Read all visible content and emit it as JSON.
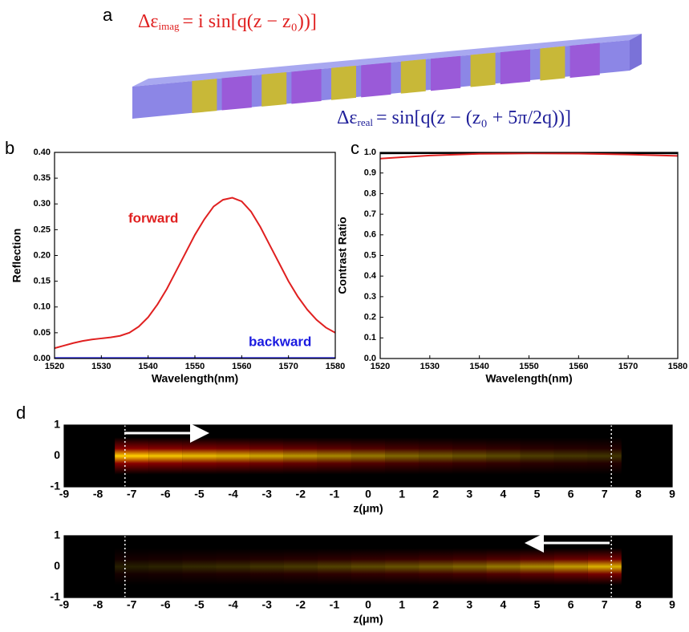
{
  "panel_a": {
    "label": "a",
    "equation_imag": {
      "base": "Δε",
      "sub": "imag",
      "rhs": "= i sin[q(z − z₀))]"
    },
    "equation_real": {
      "base": "Δε",
      "sub": "real",
      "rhs": "= sin[q(z − (z₀ + 5π/2q))]"
    }
  },
  "chart_data": [
    {
      "type": "line",
      "panel": "b",
      "xlabel": "Wavelength(nm)",
      "ylabel": "Reflection",
      "x": [
        1520,
        1522,
        1524,
        1526,
        1528,
        1530,
        1532,
        1534,
        1536,
        1538,
        1540,
        1542,
        1544,
        1546,
        1548,
        1550,
        1552,
        1554,
        1556,
        1558,
        1560,
        1562,
        1564,
        1566,
        1568,
        1570,
        1572,
        1574,
        1576,
        1578,
        1580
      ],
      "series": [
        {
          "name": "forward",
          "color": "#e02020",
          "values": [
            0.02,
            0.025,
            0.03,
            0.034,
            0.037,
            0.039,
            0.041,
            0.044,
            0.05,
            0.062,
            0.08,
            0.105,
            0.135,
            0.17,
            0.205,
            0.24,
            0.27,
            0.295,
            0.308,
            0.312,
            0.305,
            0.285,
            0.255,
            0.22,
            0.185,
            0.15,
            0.12,
            0.095,
            0.075,
            0.06,
            0.05
          ]
        },
        {
          "name": "backward",
          "color": "#1a1ae0",
          "values": [
            0.001,
            0.001,
            0.001,
            0.001,
            0.001,
            0.001,
            0.001,
            0.001,
            0.001,
            0.001,
            0.001,
            0.001,
            0.001,
            0.001,
            0.001,
            0.001,
            0.001,
            0.001,
            0.001,
            0.001,
            0.001,
            0.001,
            0.001,
            0.001,
            0.001,
            0.001,
            0.001,
            0.001,
            0.001,
            0.001,
            0.001
          ]
        }
      ],
      "xlim": [
        1520,
        1580
      ],
      "xticks": [
        1520,
        1530,
        1540,
        1550,
        1560,
        1570,
        1580
      ],
      "ylim": [
        0,
        0.4
      ],
      "yticks": [
        {
          "value": 0,
          "label": "0.00"
        },
        {
          "value": 0.05,
          "label": "0.05"
        },
        {
          "value": 0.1,
          "label": "0.10"
        },
        {
          "value": 0.15,
          "label": "0.15"
        },
        {
          "value": 0.2,
          "label": "0.20"
        },
        {
          "value": 0.25,
          "label": "0.25"
        },
        {
          "value": 0.3,
          "label": "0.30"
        },
        {
          "value": 0.35,
          "label": "0.35"
        },
        {
          "value": 0.4,
          "label": "0.40"
        }
      ]
    },
    {
      "type": "line",
      "panel": "c",
      "xlabel": "Wavelength(nm)",
      "ylabel": "Contrast Ratio",
      "x": [
        1520,
        1530,
        1540,
        1550,
        1560,
        1570,
        1580
      ],
      "series": [
        {
          "color": "#000000",
          "values": [
            0.995,
            0.996,
            0.997,
            0.997,
            0.997,
            0.996,
            0.995
          ]
        },
        {
          "color": "#e02020",
          "values": [
            0.97,
            0.985,
            0.993,
            0.995,
            0.994,
            0.99,
            0.983
          ]
        }
      ],
      "xlim": [
        1520,
        1580
      ],
      "xticks": [
        1520,
        1530,
        1540,
        1550,
        1560,
        1570,
        1580
      ],
      "ylim": [
        0,
        1
      ],
      "yticks": [
        {
          "value": 0,
          "label": "0.0"
        },
        {
          "value": 0.1,
          "label": "0.1"
        },
        {
          "value": 0.2,
          "label": "0.2"
        },
        {
          "value": 0.3,
          "label": "0.3"
        },
        {
          "value": 0.4,
          "label": "0.4"
        },
        {
          "value": 0.5,
          "label": "0.5"
        },
        {
          "value": 0.6,
          "label": "0.6"
        },
        {
          "value": 0.7,
          "label": "0.7"
        },
        {
          "value": 0.8,
          "label": "0.8"
        },
        {
          "value": 0.9,
          "label": "0.9"
        },
        {
          "value": 1,
          "label": "1.0"
        }
      ]
    },
    {
      "type": "heatmap",
      "panel": "d",
      "xlabel": "z(μm)",
      "x": [
        -7,
        -6,
        -5,
        -4,
        -3,
        -2,
        -1,
        0,
        1,
        2,
        3,
        4,
        5,
        6,
        7
      ],
      "values": [
        1.0,
        0.95,
        0.9,
        0.85,
        0.8,
        0.72,
        0.65,
        0.58,
        0.5,
        0.45,
        0.4,
        0.35,
        0.3,
        0.27,
        0.25
      ],
      "boundaries": [
        -7.2,
        7.2
      ],
      "xlim": [
        -9,
        9
      ],
      "xticks": [
        -9,
        -8,
        -7,
        -6,
        -5,
        -4,
        -3,
        -2,
        -1,
        0,
        1,
        2,
        3,
        4,
        5,
        6,
        7,
        8,
        9
      ],
      "ylim": [
        -1,
        1
      ],
      "yticks": [
        -1,
        0,
        1
      ]
    },
    {
      "type": "heatmap",
      "xlabel": "z(μm)",
      "x": [
        -7,
        -6,
        -5,
        -4,
        -3,
        -2,
        -1,
        0,
        1,
        2,
        3,
        4,
        5,
        6,
        7
      ],
      "values": [
        0.15,
        0.17,
        0.2,
        0.22,
        0.25,
        0.28,
        0.32,
        0.36,
        0.4,
        0.45,
        0.5,
        0.58,
        0.66,
        0.75,
        0.85
      ],
      "boundaries": [
        -7.2,
        7.2
      ],
      "xlim": [
        -9,
        9
      ],
      "xticks": [
        -9,
        -8,
        -7,
        -6,
        -5,
        -4,
        -3,
        -2,
        -1,
        0,
        1,
        2,
        3,
        4,
        5,
        6,
        7,
        8,
        9
      ],
      "ylim": [
        -1,
        1
      ],
      "yticks": [
        -1,
        0,
        1
      ]
    }
  ]
}
